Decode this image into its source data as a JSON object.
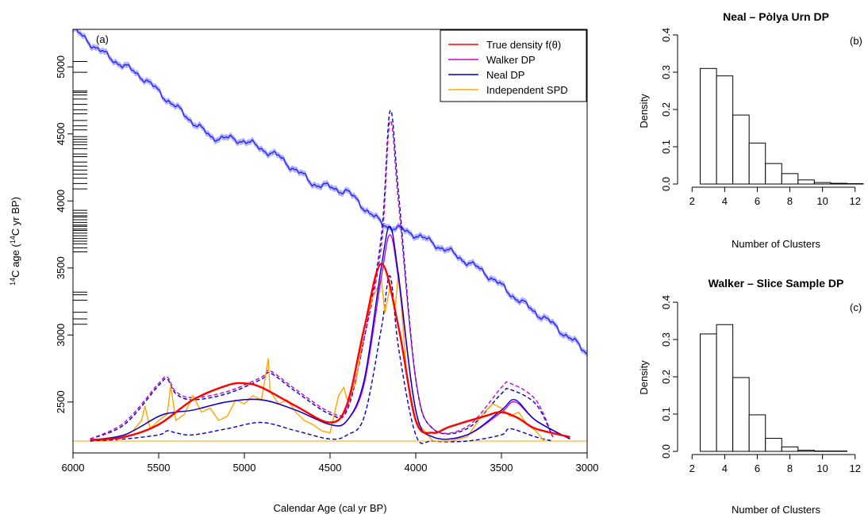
{
  "chart_data": [
    {
      "panel": "a",
      "panel_label": "(a)",
      "type": "line",
      "xlabel": "Calendar Age (cal yr BP)",
      "ylabel_pre": "",
      "ylabel_sup": "14",
      "ylabel_post": "C age (",
      "ylabel_sup2": "14",
      "ylabel_end": "C yr BP)",
      "xlim": [
        6000,
        3000
      ],
      "x_reversed": true,
      "ylim_left": [
        2120,
        5280
      ],
      "x_ticks": [
        6000,
        5500,
        5000,
        4500,
        4000,
        3500,
        3000
      ],
      "y_ticks": [
        2500,
        3000,
        3500,
        4000,
        4500,
        5000
      ],
      "legend_placement": "top-right",
      "legend": [
        {
          "label": "True density f(θ)",
          "color": "#ff0000"
        },
        {
          "label": "Walker DP",
          "color": "#cc00cc"
        },
        {
          "label": "Neal DP",
          "color": "#0000cc"
        },
        {
          "label": "Independent SPD",
          "color": "#ffa500"
        }
      ],
      "calibration_curve": {
        "name": "calibration curve",
        "color": "#1a1aff",
        "band_color": "#9a9aff",
        "x": [
          6000,
          5800,
          5600,
          5400,
          5200,
          5000,
          4800,
          4600,
          4400,
          4200,
          4000,
          3800,
          3600,
          3400,
          3200,
          3000
        ],
        "y": [
          5280,
          5080,
          4930,
          4700,
          4480,
          4450,
          4330,
          4130,
          4070,
          3830,
          3750,
          3620,
          3470,
          3260,
          3080,
          2870
        ]
      },
      "rug": [
        5040,
        4960,
        4820,
        4810,
        4790,
        4760,
        4720,
        4680,
        4650,
        4600,
        4560,
        4530,
        4480,
        4460,
        4440,
        4420,
        4390,
        4350,
        4330,
        4290,
        4260,
        4230,
        4200,
        4170,
        4130,
        4090,
        3930,
        3910,
        3890,
        3880,
        3860,
        3840,
        3820,
        3810,
        3790,
        3780,
        3760,
        3740,
        3720,
        3700,
        3680,
        3650,
        3620,
        3320,
        3300,
        3260,
        3170,
        3120,
        3080
      ],
      "series": [
        {
          "name": "True density f(θ)",
          "color": "#ff0000",
          "x": [
            5900,
            5700,
            5500,
            5300,
            5100,
            5000,
            4900,
            4700,
            4500,
            4400,
            4300,
            4200,
            4100,
            4000,
            3900,
            3800,
            3600,
            3500,
            3400,
            3300,
            3100
          ],
          "y": [
            0.005,
            0.02,
            0.08,
            0.2,
            0.27,
            0.28,
            0.26,
            0.17,
            0.09,
            0.18,
            0.55,
            0.86,
            0.55,
            0.1,
            0.04,
            0.07,
            0.12,
            0.14,
            0.11,
            0.06,
            0.02
          ]
        },
        {
          "name": "Neal DP",
          "color": "#0000cc",
          "x": [
            5900,
            5700,
            5500,
            5400,
            5300,
            5100,
            4900,
            4700,
            4500,
            4400,
            4300,
            4200,
            4150,
            4100,
            4000,
            3900,
            3700,
            3500,
            3420,
            3300,
            3100
          ],
          "y": [
            0.005,
            0.03,
            0.12,
            0.14,
            0.15,
            0.19,
            0.2,
            0.15,
            0.08,
            0.1,
            0.3,
            0.85,
            1.04,
            0.8,
            0.15,
            0.02,
            0.03,
            0.15,
            0.2,
            0.1,
            0.01
          ]
        },
        {
          "name": "Walker DP",
          "color": "#cc00cc",
          "x": [
            5900,
            5700,
            5500,
            5400,
            5300,
            5100,
            4900,
            4700,
            4500,
            4400,
            4300,
            4200,
            4150,
            4100,
            4000,
            3900,
            3700,
            3500,
            3420,
            3300,
            3100
          ],
          "y": [
            0.005,
            0.03,
            0.12,
            0.14,
            0.15,
            0.19,
            0.2,
            0.15,
            0.08,
            0.1,
            0.28,
            0.8,
            1.0,
            0.78,
            0.15,
            0.02,
            0.03,
            0.14,
            0.19,
            0.1,
            0.01
          ]
        },
        {
          "name": "Neal DP upper",
          "color": "#0000cc",
          "dashed": true,
          "x": [
            5900,
            5700,
            5500,
            5450,
            5400,
            5300,
            5100,
            4900,
            4850,
            4700,
            4500,
            4400,
            4300,
            4200,
            4150,
            4100,
            4000,
            3900,
            3700,
            3500,
            3450,
            3300,
            3200
          ],
          "y": [
            0.01,
            0.08,
            0.27,
            0.3,
            0.23,
            0.2,
            0.23,
            0.3,
            0.33,
            0.24,
            0.13,
            0.15,
            0.5,
            1.0,
            1.6,
            1.2,
            0.3,
            0.06,
            0.06,
            0.23,
            0.25,
            0.18,
            0.02
          ]
        },
        {
          "name": "Neal DP lower",
          "color": "#0000cc",
          "dashed": true,
          "x": [
            5900,
            5700,
            5500,
            5450,
            5400,
            5300,
            5100,
            4900,
            4700,
            4500,
            4400,
            4300,
            4200,
            4150,
            4100,
            4000,
            3900,
            3700,
            3500,
            3450,
            3300,
            3200
          ],
          "y": [
            0.0,
            0.01,
            0.03,
            0.05,
            0.04,
            0.03,
            0.06,
            0.09,
            0.05,
            0.01,
            0.03,
            0.12,
            0.55,
            0.8,
            0.45,
            0.03,
            0.0,
            0.0,
            0.03,
            0.06,
            0.02,
            0.0
          ]
        },
        {
          "name": "Walker DP upper",
          "color": "#cc00cc",
          "dashed": true,
          "x": [
            5900,
            5700,
            5500,
            5450,
            5400,
            5300,
            5100,
            4900,
            4850,
            4700,
            4500,
            4400,
            4300,
            4200,
            4150,
            4100,
            4000,
            3900,
            3700,
            3500,
            3450,
            3300,
            3200
          ],
          "y": [
            0.01,
            0.09,
            0.28,
            0.31,
            0.24,
            0.21,
            0.24,
            0.31,
            0.34,
            0.25,
            0.14,
            0.16,
            0.5,
            0.95,
            1.55,
            1.15,
            0.3,
            0.06,
            0.07,
            0.26,
            0.28,
            0.2,
            0.02
          ]
        },
        {
          "name": "Independent SPD",
          "color": "#ffa500",
          "x": [
            5750,
            5650,
            5600,
            5580,
            5550,
            5500,
            5450,
            5430,
            5400,
            5350,
            5300,
            5250,
            5200,
            5150,
            5100,
            5050,
            5000,
            4950,
            4900,
            4860,
            4850,
            4800,
            4750,
            4700,
            4650,
            4600,
            4550,
            4500,
            4450,
            4420,
            4400,
            4350,
            4300,
            4250,
            4200,
            4180,
            4150,
            4120,
            4100,
            4050,
            4000,
            3950,
            3900,
            3800,
            3700,
            3600,
            3550,
            3500,
            3450,
            3400,
            3350,
            3300,
            3250
          ],
          "y": [
            0.0,
            0.05,
            0.1,
            0.17,
            0.06,
            0.1,
            0.13,
            0.27,
            0.1,
            0.13,
            0.22,
            0.14,
            0.16,
            0.1,
            0.12,
            0.2,
            0.18,
            0.22,
            0.2,
            0.4,
            0.24,
            0.18,
            0.2,
            0.14,
            0.1,
            0.08,
            0.05,
            0.04,
            0.22,
            0.26,
            0.2,
            0.28,
            0.55,
            0.7,
            0.78,
            0.62,
            0.75,
            0.65,
            0.82,
            0.3,
            0.1,
            0.05,
            0.0,
            0.0,
            0.02,
            0.14,
            0.18,
            0.16,
            0.12,
            0.14,
            0.08,
            0.05,
            0.0
          ]
        }
      ]
    },
    {
      "panel": "b",
      "panel_label": "(b)",
      "type": "bar",
      "title": "Neal – Pòlya Urn DP",
      "xlabel": "Number of Clusters",
      "ylabel": "Density",
      "ylim": [
        0,
        0.4
      ],
      "xlim": [
        1.5,
        12.5
      ],
      "x_ticks": [
        2,
        4,
        6,
        8,
        10,
        12
      ],
      "y_ticks": [
        "0.0",
        "0.1",
        "0.2",
        "0.3",
        "0.4"
      ],
      "categories": [
        3,
        4,
        5,
        6,
        7,
        8,
        9,
        10,
        11,
        12
      ],
      "values": [
        0.31,
        0.29,
        0.185,
        0.11,
        0.055,
        0.028,
        0.011,
        0.004,
        0.002,
        0.001
      ]
    },
    {
      "panel": "c",
      "panel_label": "(c)",
      "type": "bar",
      "title": "Walker – Slice Sample DP",
      "xlabel": "Number of Clusters",
      "ylabel": "Density",
      "ylim": [
        0,
        0.4
      ],
      "xlim": [
        1.5,
        12.5
      ],
      "x_ticks": [
        2,
        4,
        6,
        8,
        10,
        12
      ],
      "y_ticks": [
        "0.0",
        "0.1",
        "0.2",
        "0.3",
        "0.4"
      ],
      "categories": [
        3,
        4,
        5,
        6,
        7,
        8,
        9,
        10,
        11
      ],
      "values": [
        0.315,
        0.34,
        0.198,
        0.098,
        0.035,
        0.012,
        0.003,
        0.001,
        0.001
      ]
    }
  ]
}
